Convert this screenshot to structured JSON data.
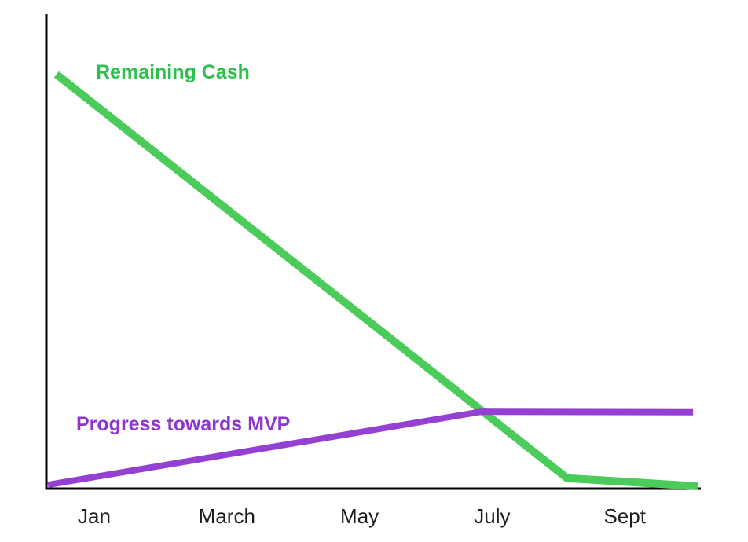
{
  "chart_data": {
    "type": "line",
    "title": "",
    "description": "Startup runway chart: remaining cash declines while progress towards MVP rises then plateaus",
    "grid": false,
    "legend": "inline-labels",
    "axes_color": "#000000",
    "tick_label_color": "#1d1d1f",
    "x_axis": {
      "unit": "month",
      "tick_labels": [
        "Jan",
        "March",
        "May",
        "July",
        "Sept"
      ],
      "tick_positions_month": [
        1,
        3,
        5,
        7,
        9
      ],
      "range_month": [
        0.3,
        10.1
      ]
    },
    "y_axis": {
      "tick_labels": [],
      "range_pct": [
        0,
        100
      ]
    },
    "series": [
      {
        "name": "Remaining Cash",
        "color": "#4bcb5a",
        "label_color": "#2fbf4e",
        "points": [
          {
            "month": 0.43,
            "pct": 87.3
          },
          {
            "month": 8.13,
            "pct": 2.2
          },
          {
            "month": 10.1,
            "pct": 0.5
          }
        ]
      },
      {
        "name": "Progress towards MVP",
        "color": "#9440d3",
        "label_color": "#8f35cf",
        "points": [
          {
            "month": 0.3,
            "pct": 0.8
          },
          {
            "month": 6.83,
            "pct": 16.2
          },
          {
            "month": 10.03,
            "pct": 16.1
          }
        ]
      }
    ]
  }
}
